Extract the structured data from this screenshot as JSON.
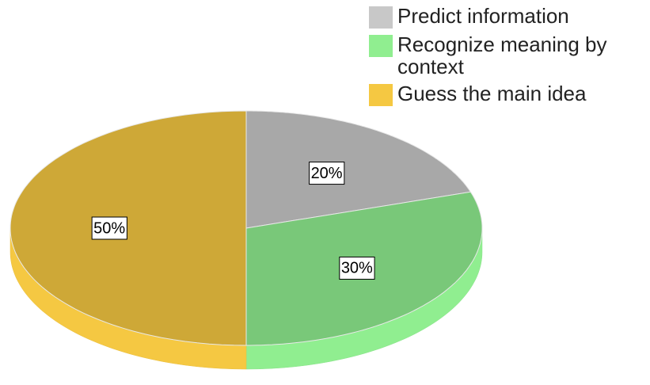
{
  "chart_data": {
    "type": "pie",
    "categories": [
      "Predict information",
      "Recognize meaning by context",
      "Guess the main idea"
    ],
    "values": [
      20,
      30,
      50
    ],
    "value_labels": [
      "20%",
      "30%",
      "50%"
    ],
    "colors": [
      "#c8c8c8",
      "#90ee90",
      "#f5c842"
    ]
  }
}
